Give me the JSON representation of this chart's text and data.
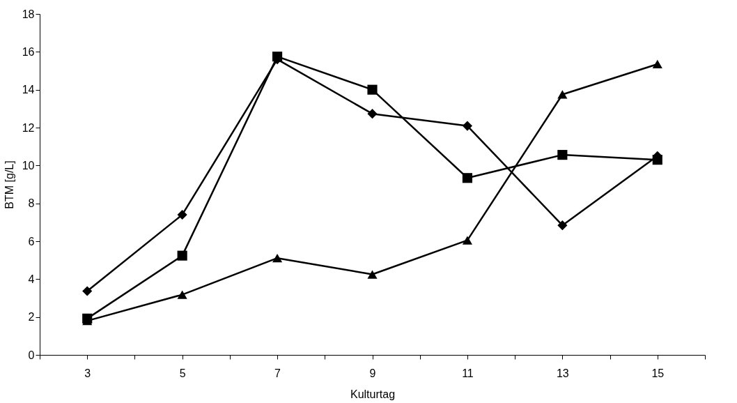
{
  "chart_data": {
    "type": "line",
    "xlabel": "Kulturtag",
    "ylabel": "BTM [g/L]",
    "x": [
      3,
      5,
      7,
      9,
      11,
      13,
      15
    ],
    "xlim": [
      2,
      16
    ],
    "xticks": [
      {
        "value": 2,
        "label": null
      },
      3,
      {
        "value": 4,
        "label": null
      },
      5,
      {
        "value": 6,
        "label": null
      },
      7,
      {
        "value": 8,
        "label": null
      },
      9,
      {
        "value": 10,
        "label": null
      },
      11,
      {
        "value": 12,
        "label": null
      },
      13,
      {
        "value": 14,
        "label": null
      },
      15,
      {
        "value": 16,
        "label": null
      }
    ],
    "ylim": [
      0,
      18
    ],
    "yticks": [
      0,
      2,
      4,
      6,
      8,
      10,
      12,
      14,
      16,
      18
    ],
    "line_style": "solid",
    "series": [
      {
        "color": "#000000",
        "marker": "diamond",
        "values": [
          3.37,
          7.4,
          15.6,
          12.73,
          12.09,
          6.84,
          10.5
        ]
      },
      {
        "color": "#000000",
        "marker": "square",
        "values": [
          1.92,
          5.24,
          15.75,
          14.0,
          9.34,
          10.56,
          10.3
        ]
      },
      {
        "color": "#000000",
        "marker": "triangle",
        "values": [
          1.8,
          3.18,
          5.11,
          4.25,
          6.05,
          13.75,
          15.35
        ]
      }
    ]
  }
}
